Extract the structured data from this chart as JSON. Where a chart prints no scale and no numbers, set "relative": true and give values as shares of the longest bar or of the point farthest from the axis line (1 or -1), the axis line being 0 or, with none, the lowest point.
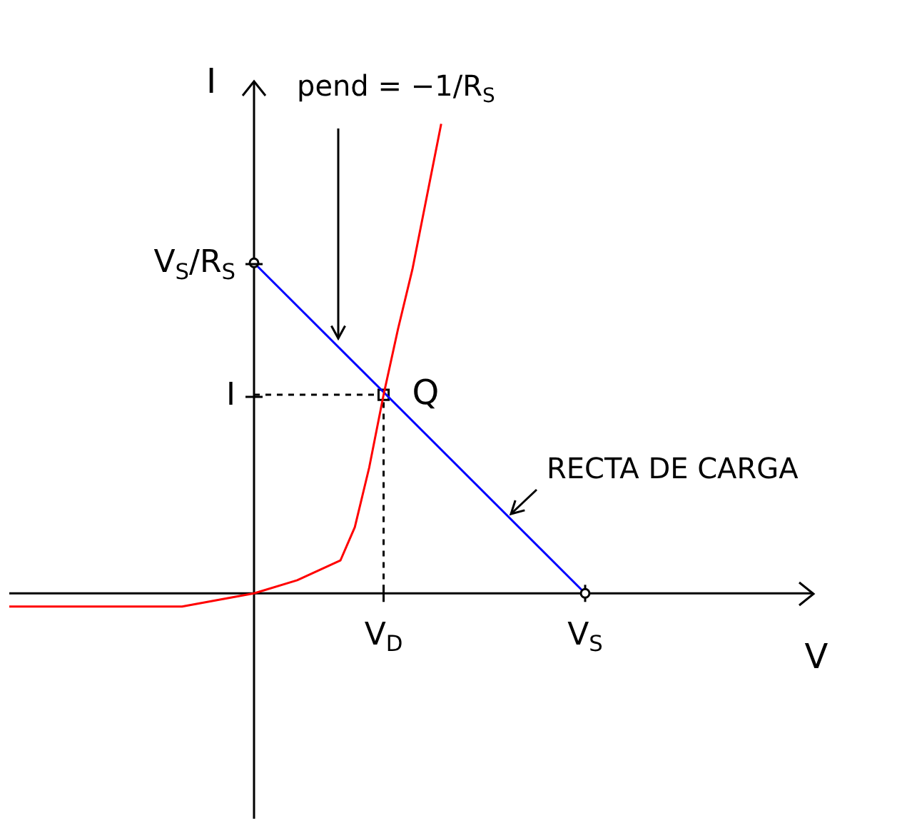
{
  "chart_data": {
    "type": "line",
    "relative": true,
    "ylabel": "I",
    "categories": [
      null,
      null,
      null,
      null,
      null,
      null,
      null,
      null,
      null,
      null,
      null,
      null,
      null,
      null,
      null,
      null,
      null,
      null,
      null,
      null,
      null,
      null,
      null,
      null,
      null,
      null,
      "V$_{D}$",
      null,
      null,
      null,
      null,
      null,
      null,
      null,
      null,
      null,
      null,
      null,
      null,
      null,
      "V$_{S}$"
    ],
    "series": [
      {
        "color": "#ff0000",
        "values": [
          -0.028,
          null,
          null,
          null,
          null,
          null,
          null,
          null,
          null,
          null,
          null,
          null,
          -0.028,
          null,
          null,
          null,
          null,
          0,
          null,
          null,
          0.028,
          null,
          null,
          0.07,
          0.141,
          0.268,
          0.423,
          0.563,
          0.69,
          0.845,
          1,
          null,
          null,
          null,
          null,
          null,
          null,
          null,
          null,
          null,
          null
        ],
        "marker": "none"
      },
      {
        "color": "#0000ff",
        "values": [
          null,
          null,
          null,
          null,
          null,
          null,
          null,
          null,
          null,
          null,
          null,
          null,
          null,
          null,
          null,
          null,
          null,
          0.704,
          null,
          null,
          null,
          null,
          null,
          null,
          null,
          null,
          null,
          null,
          null,
          null,
          null,
          null,
          null,
          null,
          null,
          null,
          null,
          null,
          null,
          null,
          0
        ],
        "marker": "circle"
      },
      {
        "type": "scatter",
        "color": "#000000",
        "values": [
          null,
          null,
          null,
          null,
          null,
          null,
          null,
          null,
          null,
          null,
          null,
          null,
          null,
          null,
          null,
          null,
          null,
          null,
          null,
          null,
          null,
          null,
          null,
          null,
          null,
          null,
          0.423,
          null,
          null,
          null,
          null,
          null,
          null,
          null,
          null,
          null,
          null,
          null,
          null,
          null,
          null
        ],
        "marker": "square"
      }
    ],
    "annotations": [
      "pend = −1/R$_{S}$",
      {
        "text": "Q",
        "x": "V$_{D}$",
        "y": 0.423
      },
      "RECTA DE CARGA",
      "I",
      "V$_{S}$/R$_{S}$",
      "V"
    ]
  }
}
